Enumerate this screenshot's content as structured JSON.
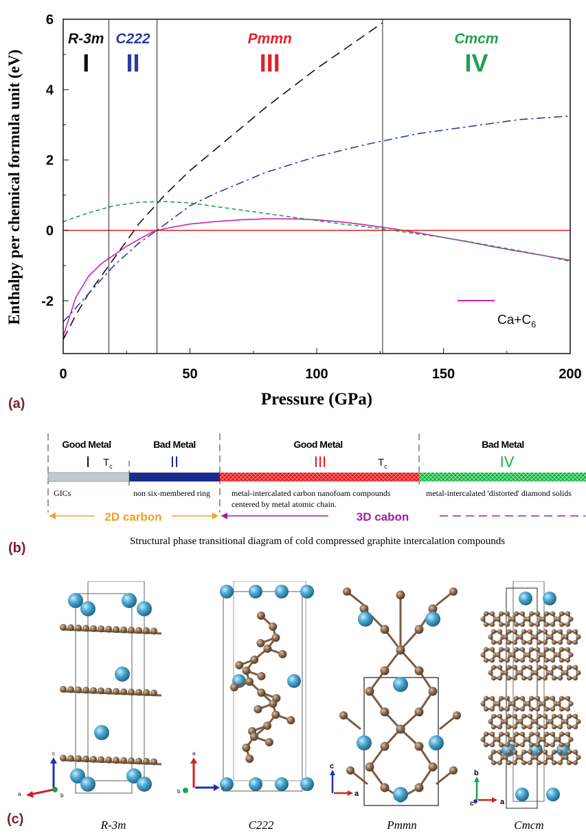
{
  "panel_labels": {
    "a": "(a)",
    "b": "(b)",
    "c": "(c)"
  },
  "chart_data": {
    "type": "line",
    "xlabel": "Pressure (GPa)",
    "ylabel": "Enthalpy per chemical formula unit (eV)",
    "xlim": [
      0,
      200
    ],
    "ylim": [
      -3.5,
      6
    ],
    "xticks": [
      0,
      50,
      100,
      150,
      200
    ],
    "yticks": [
      -2,
      0,
      2,
      4,
      6
    ],
    "phase_boundaries": [
      18,
      37,
      126
    ],
    "phases": [
      {
        "group": "R-3m",
        "numeral": "I",
        "color": "#111111"
      },
      {
        "group": "C222",
        "numeral": "II",
        "color": "#2b3aa0"
      },
      {
        "group": "Pmmn",
        "numeral": "III",
        "color": "#e0202a"
      },
      {
        "group": "Cmcm",
        "numeral": "IV",
        "color": "#1fa050"
      }
    ],
    "series": [
      {
        "name": "Ca+C6",
        "color": "#d020b0",
        "style": "solid",
        "x": [
          0,
          5,
          10,
          15,
          20,
          25,
          30,
          35,
          40,
          50,
          60,
          70,
          80,
          90,
          100,
          110,
          120,
          130,
          140,
          150,
          160,
          170,
          180,
          190,
          200
        ],
        "y": [
          -3.0,
          -1.9,
          -1.3,
          -0.95,
          -0.7,
          -0.45,
          -0.25,
          -0.05,
          0.05,
          0.18,
          0.25,
          0.3,
          0.33,
          0.33,
          0.3,
          0.24,
          0.15,
          0.05,
          -0.07,
          -0.2,
          -0.33,
          -0.47,
          -0.6,
          -0.72,
          -0.85
        ]
      },
      {
        "color": "#e03030",
        "style": "solid",
        "x": [
          0,
          200
        ],
        "y": [
          0,
          0
        ]
      },
      {
        "color": "#111111",
        "style": "dashed",
        "x": [
          0,
          5,
          10,
          15,
          20,
          25,
          30,
          35,
          40,
          50,
          60,
          70,
          80,
          90,
          100,
          110,
          120,
          126
        ],
        "y": [
          -3.1,
          -2.4,
          -1.8,
          -1.3,
          -0.8,
          -0.3,
          0.2,
          0.6,
          1.0,
          1.7,
          2.3,
          2.9,
          3.5,
          4.05,
          4.6,
          5.1,
          5.6,
          5.9
        ]
      },
      {
        "color": "#2b3aa0",
        "style": "dashdot",
        "x": [
          0,
          10,
          20,
          30,
          37,
          50,
          60,
          80,
          100,
          120,
          140,
          160,
          180,
          200
        ],
        "y": [
          -2.6,
          -1.8,
          -1.0,
          -0.35,
          0.0,
          0.7,
          1.05,
          1.65,
          2.1,
          2.45,
          2.75,
          2.95,
          3.15,
          3.25
        ]
      },
      {
        "color": "#1fa050",
        "style": "dotted",
        "x": [
          0,
          10,
          20,
          30,
          40,
          50,
          60,
          70,
          80,
          90,
          100,
          110,
          120,
          130,
          140,
          150,
          160,
          170,
          180,
          190,
          200
        ],
        "y": [
          0.25,
          0.5,
          0.7,
          0.8,
          0.82,
          0.78,
          0.68,
          0.58,
          0.48,
          0.38,
          0.28,
          0.18,
          0.1,
          0.0,
          -0.1,
          -0.2,
          -0.32,
          -0.45,
          -0.58,
          -0.72,
          -0.88
        ]
      }
    ],
    "legend": {
      "label_main": "Ca+C",
      "label_sub": "6",
      "color": "#d020b0",
      "position": "bottom-right"
    }
  },
  "phase_diagram": {
    "segments": [
      {
        "title": "Good Metal",
        "numeral": "I",
        "tc": "T",
        "tc_sub": "c",
        "desc": "GICs",
        "bar_color": "#c0c8d0"
      },
      {
        "title": "Bad Metal",
        "numeral": "II",
        "desc": "non six-membered ring",
        "bar_color": "#1c2a8c"
      },
      {
        "title": "Good Metal",
        "numeral": "III",
        "tc": "T",
        "tc_sub": "c",
        "desc": "metal-intercalated carbon nanofoam compounds",
        "desc2": "centered by metal atomic chain.",
        "bar_color": "#e02020"
      },
      {
        "title": "Bad Metal",
        "numeral": "IV",
        "desc": "metal-intercalated 'distorted' diamond solids",
        "bar_color": "#10b040"
      }
    ],
    "label_2d": "2D carbon",
    "label_3d": "3D cabon",
    "caption": "Structural phase transitional diagram of cold compressed graphite intercalation compounds"
  },
  "structures": [
    {
      "name": "R-3m",
      "axis_labels": [
        "c",
        "a",
        "b"
      ]
    },
    {
      "name": "C222",
      "axis_labels": [
        "a",
        "b",
        "c"
      ]
    },
    {
      "name": "Pmmn",
      "axis_labels": [
        "c",
        "a"
      ]
    },
    {
      "name": "Cmcm",
      "axis_labels": [
        "b",
        "c",
        "a"
      ]
    }
  ],
  "colors": {
    "carbon": "#8a6a4e",
    "calcium": "#4aa8d0",
    "axis_red": "#d02020",
    "axis_blue": "#2030b0",
    "axis_green": "#20a040"
  }
}
